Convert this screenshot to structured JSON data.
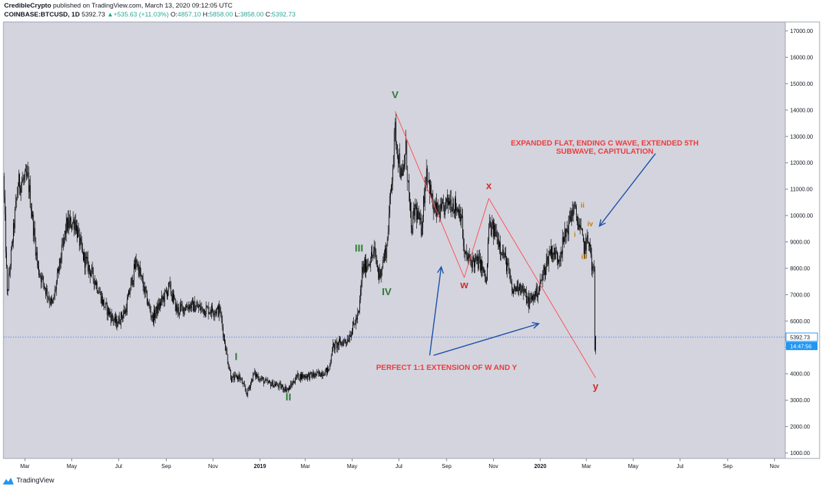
{
  "header": {
    "publisher": "CredibleCrypto",
    "published_text": "published on TradingView.com, March 13, 2020 09:12:05 UTC",
    "symbol": "COINBASE:BTCUSD, 1D",
    "last": "5392.73",
    "change": "+535.63 (+11.03%)",
    "o_label": "O:",
    "o_value": "4857.10",
    "h_label": "H:",
    "h_value": "5858.00",
    "l_label": "L:",
    "l_value": "3858.00",
    "c_label": "C:",
    "c_value": "5392.73"
  },
  "footer": {
    "brand": "TradingView"
  },
  "colors": {
    "plot_bg": "#d3d4de",
    "candle": "#000000",
    "wave_green": "#2e7d32",
    "wave_red": "#d32f2f",
    "sub_orange": "#c77d00",
    "arrow_blue": "#1e4fa8",
    "price_line": "#2962ff",
    "price_tag": "#2196f3"
  },
  "chart_data": {
    "type": "candlestick",
    "symbol": "COINBASE:BTCUSD",
    "interval": "1D",
    "ylim": [
      1000,
      17000
    ],
    "y_ticks": [
      1000,
      2000,
      3000,
      4000,
      5000,
      6000,
      7000,
      8000,
      9000,
      10000,
      11000,
      12000,
      13000,
      14000,
      15000,
      16000,
      17000
    ],
    "y_tick_labels": [
      "1000.00",
      "2000.00",
      "3000.00",
      "4000.00",
      "5000.00",
      "6000.00",
      "7000.00",
      "8000.00",
      "9000.00",
      "10000.00",
      "11000.00",
      "12000.00",
      "13000.00",
      "14000.00",
      "15000.00",
      "16000.00",
      "17000.00"
    ],
    "x_range": [
      "2018-02-01",
      "2020-11-15"
    ],
    "x_ticks": [
      {
        "date": "2018-03-01",
        "label": "Mar",
        "bold": false
      },
      {
        "date": "2018-05-01",
        "label": "May",
        "bold": false
      },
      {
        "date": "2018-07-01",
        "label": "Jul",
        "bold": false
      },
      {
        "date": "2018-09-01",
        "label": "Sep",
        "bold": false
      },
      {
        "date": "2018-11-01",
        "label": "Nov",
        "bold": false
      },
      {
        "date": "2019-01-01",
        "label": "2019",
        "bold": true
      },
      {
        "date": "2019-03-01",
        "label": "Mar",
        "bold": false
      },
      {
        "date": "2019-05-01",
        "label": "May",
        "bold": false
      },
      {
        "date": "2019-07-01",
        "label": "Jul",
        "bold": false
      },
      {
        "date": "2019-09-01",
        "label": "Sep",
        "bold": false
      },
      {
        "date": "2019-11-01",
        "label": "Nov",
        "bold": false
      },
      {
        "date": "2020-01-01",
        "label": "2020",
        "bold": true
      },
      {
        "date": "2020-03-01",
        "label": "Mar",
        "bold": false
      },
      {
        "date": "2020-05-01",
        "label": "May",
        "bold": false
      },
      {
        "date": "2020-07-01",
        "label": "Jul",
        "bold": false
      },
      {
        "date": "2020-09-01",
        "label": "Sep",
        "bold": false
      },
      {
        "date": "2020-11-01",
        "label": "Nov",
        "bold": false
      }
    ],
    "price_path": [
      [
        "2018-02-01",
        11500
      ],
      [
        "2018-02-06",
        7000
      ],
      [
        "2018-02-20",
        11200
      ],
      [
        "2018-03-05",
        11400
      ],
      [
        "2018-03-18",
        8000
      ],
      [
        "2018-04-01",
        6900
      ],
      [
        "2018-04-06",
        6600
      ],
      [
        "2018-04-24",
        9600
      ],
      [
        "2018-05-05",
        9800
      ],
      [
        "2018-05-15",
        8500
      ],
      [
        "2018-06-01",
        7500
      ],
      [
        "2018-06-12",
        6600
      ],
      [
        "2018-06-28",
        5900
      ],
      [
        "2018-07-10",
        6400
      ],
      [
        "2018-07-24",
        8300
      ],
      [
        "2018-08-05",
        7000
      ],
      [
        "2018-08-14",
        6100
      ],
      [
        "2018-08-25",
        6700
      ],
      [
        "2018-09-05",
        7300
      ],
      [
        "2018-09-15",
        6400
      ],
      [
        "2018-10-01",
        6600
      ],
      [
        "2018-10-20",
        6450
      ],
      [
        "2018-11-10",
        6400
      ],
      [
        "2018-11-14",
        5600
      ],
      [
        "2018-11-20",
        4500
      ],
      [
        "2018-11-25",
        3800
      ],
      [
        "2018-12-05",
        3900
      ],
      [
        "2018-12-15",
        3250
      ],
      [
        "2018-12-24",
        4000
      ],
      [
        "2019-01-10",
        3650
      ],
      [
        "2019-01-20",
        3600
      ],
      [
        "2019-02-07",
        3400
      ],
      [
        "2019-02-18",
        3900
      ],
      [
        "2019-03-15",
        3950
      ],
      [
        "2019-04-01",
        4150
      ],
      [
        "2019-04-05",
        5000
      ],
      [
        "2019-04-25",
        5300
      ],
      [
        "2019-05-10",
        6300
      ],
      [
        "2019-05-14",
        7900
      ],
      [
        "2019-05-30",
        8600
      ],
      [
        "2019-06-05",
        7700
      ],
      [
        "2019-06-15",
        8800
      ],
      [
        "2019-06-26",
        13200
      ],
      [
        "2019-07-05",
        11300
      ],
      [
        "2019-07-10",
        12500
      ],
      [
        "2019-07-17",
        9400
      ],
      [
        "2019-07-22",
        10300
      ],
      [
        "2019-07-30",
        9500
      ],
      [
        "2019-08-06",
        11800
      ],
      [
        "2019-08-15",
        10200
      ],
      [
        "2019-08-25",
        10100
      ],
      [
        "2019-09-05",
        10600
      ],
      [
        "2019-09-20",
        10100
      ],
      [
        "2019-09-24",
        8500
      ],
      [
        "2019-10-01",
        8300
      ],
      [
        "2019-10-15",
        8200
      ],
      [
        "2019-10-23",
        7450
      ],
      [
        "2019-10-26",
        9600
      ],
      [
        "2019-11-05",
        9300
      ],
      [
        "2019-11-20",
        8000
      ],
      [
        "2019-11-25",
        7100
      ],
      [
        "2019-12-05",
        7400
      ],
      [
        "2019-12-17",
        6700
      ],
      [
        "2019-12-30",
        7200
      ],
      [
        "2020-01-14",
        8700
      ],
      [
        "2020-01-25",
        8400
      ],
      [
        "2020-02-13",
        10300
      ],
      [
        "2020-02-20",
        9700
      ],
      [
        "2020-02-27",
        8800
      ],
      [
        "2020-03-05",
        9100
      ],
      [
        "2020-03-08",
        8000
      ],
      [
        "2020-03-11",
        7900
      ],
      [
        "2020-03-12",
        4900
      ],
      [
        "2020-03-13",
        5392.73
      ]
    ],
    "wave_lines": [
      {
        "from": [
          "2019-06-26",
          13950
        ],
        "to": [
          "2019-09-24",
          7650
        ]
      },
      {
        "from": [
          "2019-09-24",
          7650
        ],
        "to": [
          "2019-10-26",
          10650
        ]
      },
      {
        "from": [
          "2019-10-26",
          10650
        ],
        "to": [
          "2020-03-13",
          3850
        ]
      }
    ],
    "wave_labels": [
      {
        "text": "V",
        "date": "2019-06-26",
        "price": 14450,
        "group": "primary"
      },
      {
        "text": "III",
        "date": "2019-05-10",
        "price": 8640,
        "group": "primary"
      },
      {
        "text": "IV",
        "date": "2019-06-15",
        "price": 6980,
        "group": "primary"
      },
      {
        "text": "I",
        "date": "2018-12-01",
        "price": 4520,
        "group": "primary"
      },
      {
        "text": "II",
        "date": "2019-02-07",
        "price": 2995,
        "group": "primary"
      },
      {
        "text": "x",
        "date": "2019-10-26",
        "price": 11000,
        "group": "corrective"
      },
      {
        "text": "w",
        "date": "2019-09-24",
        "price": 7250,
        "group": "corrective"
      },
      {
        "text": "y",
        "date": "2020-03-13",
        "price": 3400,
        "group": "corrective"
      },
      {
        "text": "ii",
        "date": "2020-02-25",
        "price": 10300,
        "group": "sub"
      },
      {
        "text": "iv",
        "date": "2020-03-06",
        "price": 9600,
        "group": "sub"
      },
      {
        "text": "i",
        "date": "2020-02-15",
        "price": 9200,
        "group": "sub"
      },
      {
        "text": "iii",
        "date": "2020-02-27",
        "price": 8350,
        "group": "sub"
      }
    ],
    "annotations": [
      {
        "line1": "EXPANDED FLAT, ENDING C WAVE, EXTENDED 5TH",
        "line2": "SUBWAVE, CAPITULATION",
        "date": "2020-03-25",
        "price": 12650
      },
      {
        "line1": "PERFECT 1:1 EXTENSION OF W AND Y",
        "line2": "",
        "date": "2019-09-01",
        "price": 4150
      }
    ],
    "arrows": [
      {
        "from": [
          "2020-05-30",
          12350
        ],
        "to": [
          "2020-03-18",
          9600
        ]
      },
      {
        "from": [
          "2019-08-10",
          4700
        ],
        "to": [
          "2019-08-25",
          8050
        ]
      },
      {
        "from": [
          "2019-08-15",
          4700
        ],
        "to": [
          "2019-12-30",
          5900
        ]
      }
    ],
    "last_price": 5392.73,
    "last_price_label": "5392.73",
    "countdown": "14:47:56"
  }
}
